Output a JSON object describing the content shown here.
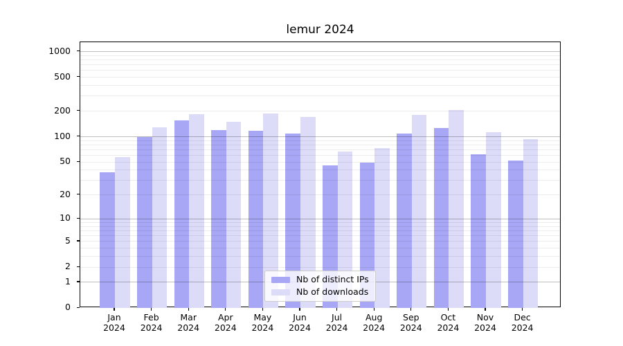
{
  "title": "lemur 2024",
  "chart_data": {
    "type": "bar",
    "title": "lemur 2024",
    "categories": [
      "Jan",
      "Feb",
      "Mar",
      "Apr",
      "May",
      "Jun",
      "Jul",
      "Aug",
      "Sep",
      "Oct",
      "Nov",
      "Dec"
    ],
    "year": "2024",
    "series": [
      {
        "name": "Nb of distinct IPs",
        "color": "#a7a7f5",
        "values": [
          38,
          99,
          156,
          119,
          118,
          109,
          46,
          49,
          109,
          126,
          62,
          52
        ]
      },
      {
        "name": "Nb of downloads",
        "color": "#dcdcf9",
        "values": [
          57,
          130,
          184,
          150,
          188,
          172,
          67,
          74,
          180,
          205,
          114,
          93
        ]
      }
    ],
    "xlabel": "",
    "ylabel": "",
    "yscale": "log10(1+y)",
    "ylim": [
      0,
      1288
    ],
    "yticks": [
      0,
      1,
      2,
      5,
      10,
      20,
      50,
      100,
      200,
      500,
      1000
    ],
    "major_gridlines": [
      1,
      10,
      100,
      1000
    ],
    "minor_gridline_decades": [
      1,
      10,
      100
    ],
    "grid": true,
    "legend_position": "lower center inside plot"
  },
  "colors": {
    "background": "#ffffff",
    "frame": "#000000",
    "major_grid": "#bdbdbd",
    "minor_grid": "#ebebeb",
    "ips_bar": "#a7a7f5",
    "downloads_bar": "#dcdcf9"
  }
}
